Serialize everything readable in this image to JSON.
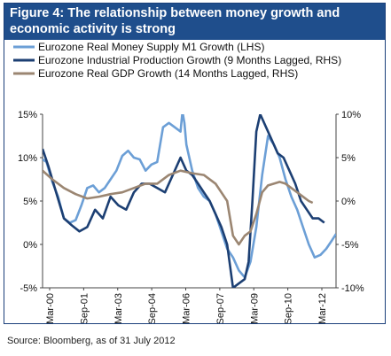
{
  "title_lines": [
    "Figure 4: The relationship between money growth and",
    "economic activity is strong"
  ],
  "source": "Source: Bloomberg, as of 31 July 2012",
  "chart_data": {
    "type": "line",
    "x_tick_labels": [
      "Mar-00",
      "Sep-01",
      "Mar-03",
      "Sep-04",
      "Mar-06",
      "Sep-07",
      "Mar-09",
      "Sep-10",
      "Mar-12"
    ],
    "x_range": [
      "2000-01",
      "2012-08"
    ],
    "y_left": {
      "label": "",
      "ylim": [
        -5,
        15
      ],
      "ticks": [
        "-5%",
        "0%",
        "5%",
        "10%",
        "15%"
      ]
    },
    "y_right": {
      "label": "",
      "ylim": [
        -10,
        10
      ],
      "ticks": [
        "-10%",
        "-5%",
        "0%",
        "5%",
        "10%"
      ]
    },
    "grid": false,
    "legend_position": "top-left",
    "series": [
      {
        "name": "Eurozone Real Money Supply M1 Growth (LHS)",
        "axis": "left",
        "color": "#6c9fd6",
        "points": [
          [
            "2000-01",
            9.8
          ],
          [
            "2000-03",
            9.5
          ],
          [
            "2000-06",
            7.2
          ],
          [
            "2000-09",
            5.5
          ],
          [
            "2000-12",
            3.0
          ],
          [
            "2001-03",
            2.5
          ],
          [
            "2001-06",
            2.8
          ],
          [
            "2001-09",
            4.5
          ],
          [
            "2001-12",
            6.5
          ],
          [
            "2002-03",
            6.8
          ],
          [
            "2002-06",
            6.0
          ],
          [
            "2002-09",
            6.5
          ],
          [
            "2002-12",
            7.5
          ],
          [
            "2003-03",
            8.5
          ],
          [
            "2003-06",
            10.2
          ],
          [
            "2003-09",
            10.8
          ],
          [
            "2003-12",
            10.0
          ],
          [
            "2004-03",
            9.8
          ],
          [
            "2004-06",
            8.5
          ],
          [
            "2004-09",
            9.2
          ],
          [
            "2004-12",
            9.5
          ],
          [
            "2005-03",
            13.5
          ],
          [
            "2005-06",
            14.0
          ],
          [
            "2005-09",
            13.5
          ],
          [
            "2005-12",
            13.0
          ],
          [
            "2006-01",
            15.3
          ],
          [
            "2006-02",
            14.0
          ],
          [
            "2006-03",
            11.5
          ],
          [
            "2006-06",
            8.5
          ],
          [
            "2006-09",
            6.5
          ],
          [
            "2006-12",
            5.5
          ],
          [
            "2007-03",
            5.0
          ],
          [
            "2007-06",
            3.5
          ],
          [
            "2007-09",
            1.5
          ],
          [
            "2007-12",
            -0.5
          ],
          [
            "2008-03",
            -1.5
          ],
          [
            "2008-06",
            -3.0
          ],
          [
            "2008-09",
            -3.8
          ],
          [
            "2008-12",
            -2.0
          ],
          [
            "2009-03",
            2.0
          ],
          [
            "2009-06",
            8.0
          ],
          [
            "2009-09",
            12.5
          ],
          [
            "2009-12",
            11.5
          ],
          [
            "2010-03",
            10.0
          ],
          [
            "2010-06",
            7.5
          ],
          [
            "2010-09",
            5.5
          ],
          [
            "2010-12",
            4.0
          ],
          [
            "2011-03",
            2.0
          ],
          [
            "2011-06",
            0.0
          ],
          [
            "2011-09",
            -1.5
          ],
          [
            "2011-12",
            -1.2
          ],
          [
            "2012-03",
            -0.5
          ],
          [
            "2012-06",
            0.5
          ],
          [
            "2012-08",
            1.2
          ]
        ]
      },
      {
        "name": "Eurozone Industrial Production Growth (9 Months Lagged, RHS)",
        "axis": "right",
        "color": "#1c3f73",
        "points": [
          [
            "2000-01",
            6.0
          ],
          [
            "2000-04",
            4.0
          ],
          [
            "2000-08",
            1.0
          ],
          [
            "2000-12",
            -2.0
          ],
          [
            "2001-04",
            -2.8
          ],
          [
            "2001-08",
            -3.5
          ],
          [
            "2001-12",
            -3.0
          ],
          [
            "2002-04",
            -1.0
          ],
          [
            "2002-08",
            -2.0
          ],
          [
            "2002-12",
            0.5
          ],
          [
            "2003-04",
            -0.5
          ],
          [
            "2003-08",
            -1.0
          ],
          [
            "2003-12",
            1.0
          ],
          [
            "2004-04",
            2.0
          ],
          [
            "2004-08",
            2.0
          ],
          [
            "2004-12",
            1.5
          ],
          [
            "2005-04",
            1.0
          ],
          [
            "2005-08",
            3.0
          ],
          [
            "2005-12",
            5.0
          ],
          [
            "2006-03",
            3.5
          ],
          [
            "2006-06",
            3.0
          ],
          [
            "2006-09",
            2.0
          ],
          [
            "2006-12",
            1.0
          ],
          [
            "2007-03",
            0.0
          ],
          [
            "2007-06",
            -1.5
          ],
          [
            "2007-09",
            -3.0
          ],
          [
            "2007-12",
            -5.0
          ],
          [
            "2008-03",
            -10.0
          ],
          [
            "2008-06",
            -9.5
          ],
          [
            "2008-09",
            -9.0
          ],
          [
            "2008-11",
            -7.0
          ],
          [
            "2009-01",
            0.0
          ],
          [
            "2009-03",
            8.0
          ],
          [
            "2009-05",
            10.0
          ],
          [
            "2009-08",
            8.5
          ],
          [
            "2009-11",
            7.0
          ],
          [
            "2010-02",
            5.5
          ],
          [
            "2010-05",
            5.0
          ],
          [
            "2010-08",
            3.5
          ],
          [
            "2010-11",
            2.0
          ],
          [
            "2011-02",
            0.0
          ],
          [
            "2011-05",
            -1.0
          ],
          [
            "2011-08",
            -2.0
          ],
          [
            "2011-11",
            -2.0
          ],
          [
            "2012-02",
            -2.5
          ]
        ]
      },
      {
        "name": "Eurozone Real GDP Growth (14 Months Lagged, RHS)",
        "axis": "right",
        "color": "#9b8672",
        "points": [
          [
            "2000-01",
            3.5
          ],
          [
            "2000-06",
            2.5
          ],
          [
            "2000-12",
            1.5
          ],
          [
            "2001-06",
            0.8
          ],
          [
            "2001-12",
            0.3
          ],
          [
            "2002-06",
            0.5
          ],
          [
            "2002-12",
            0.8
          ],
          [
            "2003-06",
            1.0
          ],
          [
            "2003-12",
            1.5
          ],
          [
            "2004-06",
            2.0
          ],
          [
            "2004-12",
            2.0
          ],
          [
            "2005-06",
            3.0
          ],
          [
            "2005-12",
            3.5
          ],
          [
            "2006-06",
            3.2
          ],
          [
            "2006-12",
            3.0
          ],
          [
            "2007-06",
            2.0
          ],
          [
            "2007-12",
            0.0
          ],
          [
            "2008-03",
            -4.0
          ],
          [
            "2008-06",
            -5.0
          ],
          [
            "2008-09",
            -4.0
          ],
          [
            "2008-12",
            -3.5
          ],
          [
            "2009-03",
            -1.5
          ],
          [
            "2009-06",
            1.0
          ],
          [
            "2009-09",
            1.8
          ],
          [
            "2009-12",
            2.0
          ],
          [
            "2010-03",
            2.2
          ],
          [
            "2010-06",
            2.0
          ],
          [
            "2010-09",
            1.5
          ],
          [
            "2010-12",
            1.0
          ],
          [
            "2011-03",
            0.5
          ],
          [
            "2011-06",
            0.0
          ],
          [
            "2011-08",
            -0.2
          ]
        ]
      }
    ]
  }
}
